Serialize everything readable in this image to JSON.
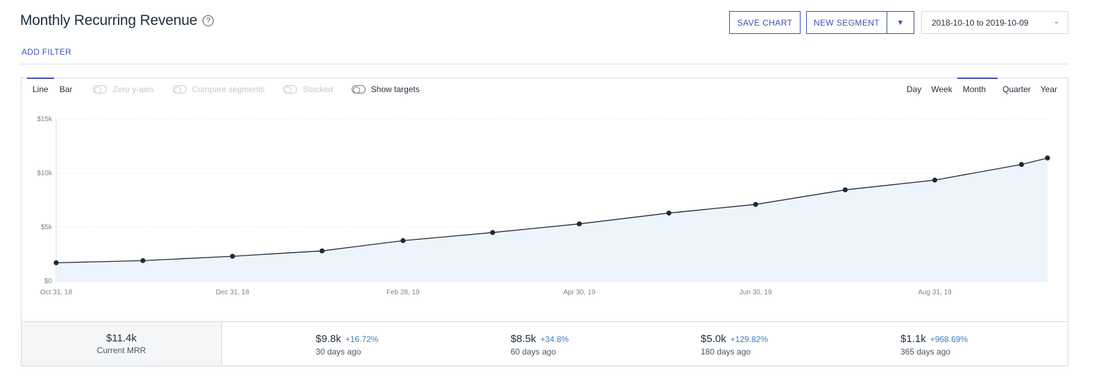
{
  "header": {
    "title": "Monthly Recurring Revenue",
    "help_icon": "?",
    "save_chart": "SAVE CHART",
    "new_segment": "NEW SEGMENT",
    "segment_caret": "▼",
    "date_range": "2018-10-10 to 2019-10-09",
    "date_chevron": "⌄"
  },
  "filters": {
    "add_filter": "ADD FILTER"
  },
  "chart_controls": {
    "type_tabs": [
      "Line",
      "Bar"
    ],
    "active_type": "Line",
    "toggles": [
      {
        "label": "Zero y-axis",
        "enabled": false
      },
      {
        "label": "Compare segments",
        "enabled": false
      },
      {
        "label": "Stacked",
        "enabled": false
      },
      {
        "label": "Show targets",
        "enabled": true
      }
    ],
    "period_tabs": [
      "Day",
      "Week",
      "Month",
      "Quarter",
      "Year"
    ],
    "active_period": "Month"
  },
  "colors": {
    "accent": "#3f51b5",
    "line": "#1c2b3a",
    "area_fill": "#edf4fc",
    "positive": "#3a7fc4"
  },
  "chart_data": {
    "type": "area",
    "title": "",
    "xlabel": "",
    "ylabel": "",
    "ylim": [
      0,
      15000
    ],
    "y_ticks": [
      "$0",
      "$5k",
      "$10k",
      "$15k"
    ],
    "y_tick_values": [
      0,
      5000,
      10000,
      15000
    ],
    "x_ticks": [
      "Oct 31, 18",
      "Dec 31, 18",
      "Feb 28, 19",
      "Apr 30, 19",
      "Jun 30, 19",
      "Aug 31, 19"
    ],
    "x": [
      "2018-10-31",
      "2018-11-30",
      "2018-12-31",
      "2019-01-31",
      "2019-02-28",
      "2019-03-31",
      "2019-04-30",
      "2019-05-31",
      "2019-06-30",
      "2019-07-31",
      "2019-08-31",
      "2019-09-30",
      "2019-10-09"
    ],
    "series": [
      {
        "values": [
          1700,
          1900,
          2300,
          2800,
          3750,
          4500,
          5300,
          6300,
          7100,
          8450,
          9350,
          10800,
          11400
        ]
      }
    ],
    "grid": true,
    "legend": "none"
  },
  "summary": {
    "current": {
      "value": "$11.4k",
      "label": "Current MRR"
    },
    "items": [
      {
        "value": "$9.8k",
        "change": "+16.72%",
        "label": "30 days ago"
      },
      {
        "value": "$8.5k",
        "change": "+34.8%",
        "label": "60 days ago"
      },
      {
        "value": "$5.0k",
        "change": "+129.82%",
        "label": "180 days ago"
      },
      {
        "value": "$1.1k",
        "change": "+968.69%",
        "label": "365 days ago"
      }
    ]
  }
}
